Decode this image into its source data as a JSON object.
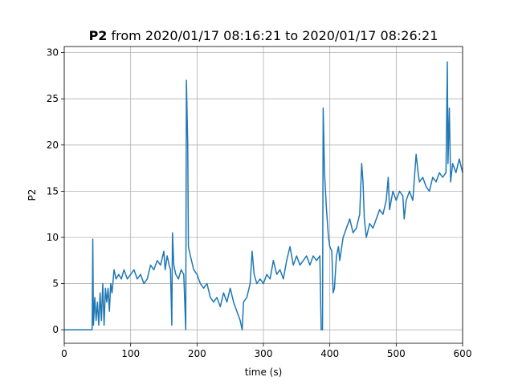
{
  "chart_data": {
    "type": "line",
    "title": {
      "bold": "P2",
      "text": "from 2020/01/17 08:16:21 to 2020/01/17 08:26:21"
    },
    "xlabel": "time (s)",
    "ylabel": "P2",
    "x": [
      0,
      20,
      40,
      42,
      43,
      44,
      46,
      48,
      50,
      52,
      54,
      56,
      58,
      60,
      62,
      64,
      66,
      68,
      70,
      72,
      75,
      78,
      82,
      86,
      90,
      95,
      100,
      105,
      110,
      115,
      120,
      125,
      130,
      135,
      140,
      145,
      150,
      152,
      155,
      158,
      160,
      162,
      163,
      165,
      168,
      172,
      176,
      180,
      183,
      184,
      186,
      187,
      190,
      195,
      200,
      205,
      210,
      215,
      220,
      225,
      230,
      235,
      240,
      245,
      250,
      255,
      260,
      265,
      268,
      270,
      275,
      280,
      283,
      286,
      290,
      295,
      300,
      305,
      310,
      315,
      320,
      325,
      330,
      335,
      340,
      345,
      350,
      355,
      360,
      365,
      370,
      375,
      380,
      385,
      387,
      389,
      390,
      392,
      395,
      398,
      400,
      403,
      405,
      407,
      410,
      413,
      415,
      420,
      425,
      430,
      435,
      440,
      445,
      448,
      450,
      452,
      455,
      460,
      465,
      470,
      475,
      480,
      485,
      488,
      490,
      495,
      500,
      505,
      510,
      512,
      515,
      520,
      525,
      530,
      533,
      535,
      540,
      545,
      550,
      555,
      560,
      565,
      570,
      575,
      577,
      578,
      580,
      582,
      585,
      590,
      595,
      600
    ],
    "series": [
      {
        "name": "P2",
        "color": "#1f77b4",
        "values": [
          0,
          0,
          0,
          0,
          9.8,
          0.5,
          3.5,
          1,
          3,
          0.5,
          4,
          1,
          5,
          0.5,
          4.5,
          3,
          4.5,
          2,
          5,
          4,
          6.5,
          5.5,
          6,
          5.5,
          6.5,
          5.5,
          6,
          6.5,
          5.5,
          6,
          5,
          5.5,
          7,
          6.5,
          7.5,
          7,
          8.5,
          6.5,
          8,
          7,
          6.5,
          0.5,
          10.5,
          7,
          6,
          5.5,
          6.5,
          6,
          0,
          27,
          20,
          9,
          8,
          6.5,
          6,
          5,
          4.5,
          5,
          3.5,
          3,
          3.5,
          2.5,
          4,
          3,
          4.5,
          3,
          2,
          1,
          0,
          3,
          3.5,
          5,
          8.5,
          6,
          5,
          5.5,
          5,
          6,
          5.5,
          7.5,
          6,
          6.5,
          5.5,
          7.5,
          9,
          7,
          8,
          7,
          7.5,
          8,
          7,
          8,
          7.5,
          8,
          0,
          0,
          24,
          17,
          13,
          10,
          9,
          8.5,
          4,
          4.5,
          8,
          9,
          7.5,
          10,
          11,
          12,
          10.5,
          11,
          12.5,
          18,
          16,
          12,
          10,
          11.5,
          11,
          12,
          13,
          12.5,
          14,
          16.5,
          13,
          15,
          14,
          15,
          14.5,
          12,
          14,
          15,
          14,
          19,
          17,
          16,
          16.5,
          15.5,
          15,
          16.5,
          16,
          17,
          16.5,
          17,
          29,
          18,
          24,
          16,
          18,
          17,
          18.5,
          17
        ]
      }
    ],
    "xlim": [
      0,
      600
    ],
    "ylim": [
      -1.46,
      30.66
    ],
    "xticks": [
      0,
      100,
      200,
      300,
      400,
      500,
      600
    ],
    "yticks": [
      0,
      5,
      10,
      15,
      20,
      25,
      30
    ],
    "grid": true
  }
}
